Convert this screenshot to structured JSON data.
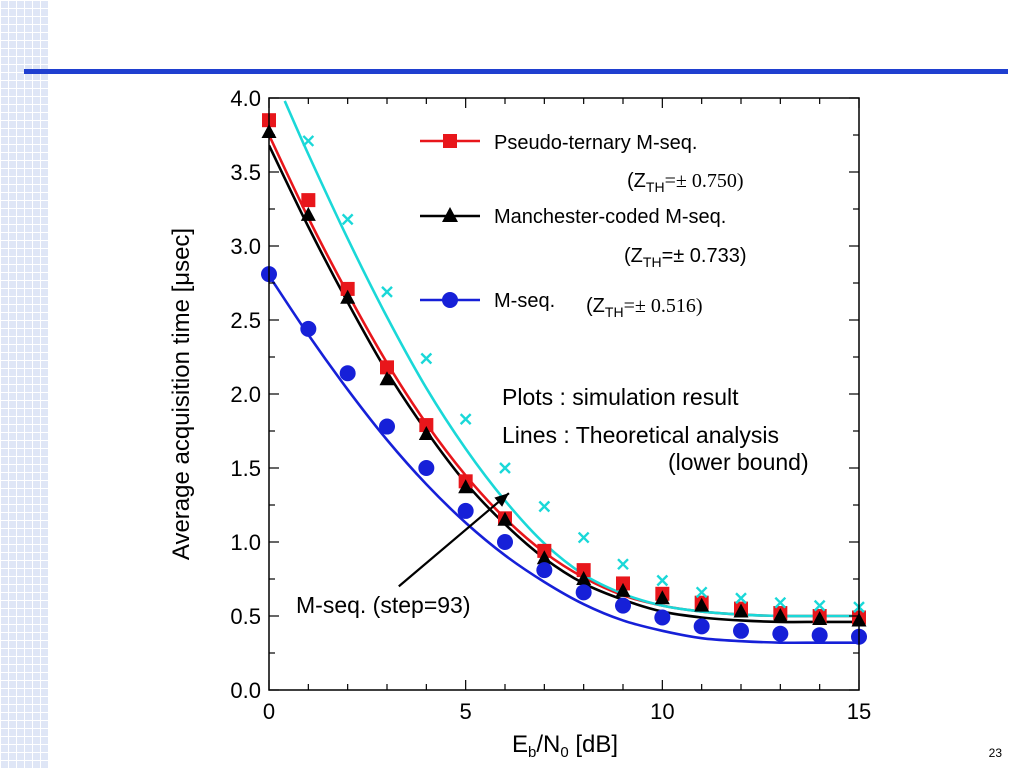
{
  "slide": {
    "number": "23"
  },
  "chart_data": {
    "type": "line",
    "xlabel_base": "E",
    "xlabel_sub1": "b",
    "xlabel_mid": "/N",
    "xlabel_sub2": "0",
    "xlabel_tail": " [dB]",
    "ylabel": "Average acquisition time [μsec]",
    "xlim": [
      0,
      15
    ],
    "ylim": [
      0,
      4.0
    ],
    "x_ticks": [
      0,
      5,
      10,
      15
    ],
    "y_ticks": [
      "0.0",
      "0.5",
      "1.0",
      "1.5",
      "2.0",
      "2.5",
      "3.0",
      "3.5",
      "4.0"
    ],
    "y_tick_values": [
      0,
      0.5,
      1.0,
      1.5,
      2.0,
      2.5,
      3.0,
      3.5,
      4.0
    ],
    "x_minor_step": 1,
    "y_minor_step": 0.25,
    "grid": false,
    "legend_position": "top-right",
    "series": [
      {
        "name": "Pseudo-ternary M-seq.",
        "threshold_prefix": "(Z",
        "threshold_sub": "TH",
        "threshold_value": "=± 0.750)",
        "color": "#e8161b",
        "marker": "square",
        "x": [
          0,
          1,
          2,
          3,
          4,
          5,
          6,
          7,
          8,
          9,
          10,
          11,
          12,
          13,
          14,
          15
        ],
        "sim": [
          3.85,
          3.31,
          2.71,
          2.18,
          1.79,
          1.41,
          1.16,
          0.94,
          0.81,
          0.72,
          0.65,
          0.59,
          0.55,
          0.52,
          0.5,
          0.49
        ],
        "theory": [
          3.75,
          3.19,
          2.68,
          2.21,
          1.8,
          1.45,
          1.16,
          0.93,
          0.76,
          0.64,
          0.57,
          0.53,
          0.51,
          0.5,
          0.5,
          0.5
        ]
      },
      {
        "name": "Manchester-coded M-seq.",
        "threshold_prefix": "(Z",
        "threshold_sub": "TH",
        "threshold_value": "=± 0.733)",
        "color": "#000000",
        "marker": "triangle",
        "x": [
          0,
          1,
          2,
          3,
          4,
          5,
          6,
          7,
          8,
          9,
          10,
          11,
          12,
          13,
          14,
          15
        ],
        "sim": [
          3.77,
          3.21,
          2.65,
          2.1,
          1.73,
          1.37,
          1.15,
          0.89,
          0.75,
          0.67,
          0.62,
          0.57,
          0.53,
          0.5,
          0.48,
          0.47
        ],
        "theory": [
          3.68,
          3.13,
          2.62,
          2.15,
          1.75,
          1.4,
          1.12,
          0.89,
          0.72,
          0.61,
          0.53,
          0.49,
          0.47,
          0.46,
          0.46,
          0.46
        ]
      },
      {
        "name": "M-seq.",
        "threshold_prefix": "(Z",
        "threshold_sub": "TH",
        "threshold_value": "=± 0.516)",
        "color": "#1620d8",
        "marker": "circle",
        "x": [
          0,
          1,
          2,
          3,
          4,
          5,
          6,
          7,
          8,
          9,
          10,
          11,
          12,
          13,
          14,
          15
        ],
        "sim": [
          2.81,
          2.44,
          2.14,
          1.78,
          1.5,
          1.21,
          1.0,
          0.81,
          0.66,
          0.57,
          0.49,
          0.43,
          0.4,
          0.38,
          0.37,
          0.36
        ],
        "theory": [
          2.8,
          2.4,
          2.03,
          1.69,
          1.39,
          1.13,
          0.91,
          0.73,
          0.58,
          0.47,
          0.4,
          0.35,
          0.33,
          0.32,
          0.32,
          0.32
        ]
      },
      {
        "name": "M-seq. (step=93)",
        "color": "#1ad8d8",
        "marker": "cross",
        "x": [
          1,
          2,
          3,
          4,
          5,
          6,
          7,
          8,
          9,
          10,
          11,
          12,
          13,
          14,
          15
        ],
        "sim": [
          3.71,
          3.18,
          2.69,
          2.24,
          1.83,
          1.5,
          1.24,
          1.03,
          0.85,
          0.74,
          0.66,
          0.62,
          0.59,
          0.57,
          0.56
        ],
        "theory_x": [
          0.4,
          1,
          2,
          3,
          4,
          5,
          6,
          7,
          8,
          9,
          10,
          11,
          12,
          13,
          14,
          15
        ],
        "theory": [
          3.98,
          3.62,
          3.05,
          2.52,
          2.04,
          1.63,
          1.28,
          0.99,
          0.78,
          0.65,
          0.57,
          0.53,
          0.51,
          0.5,
          0.5,
          0.5
        ]
      }
    ],
    "annotations": {
      "plots_note": "Plots : simulation result",
      "lines_note": "Lines : Theoretical analysis",
      "lower_bound_note": "(lower bound)",
      "arrow_label": "M-seq. (step=93)",
      "arrow_target": [
        6.1,
        1.33
      ],
      "arrow_from": [
        3.3,
        0.7
      ]
    }
  }
}
